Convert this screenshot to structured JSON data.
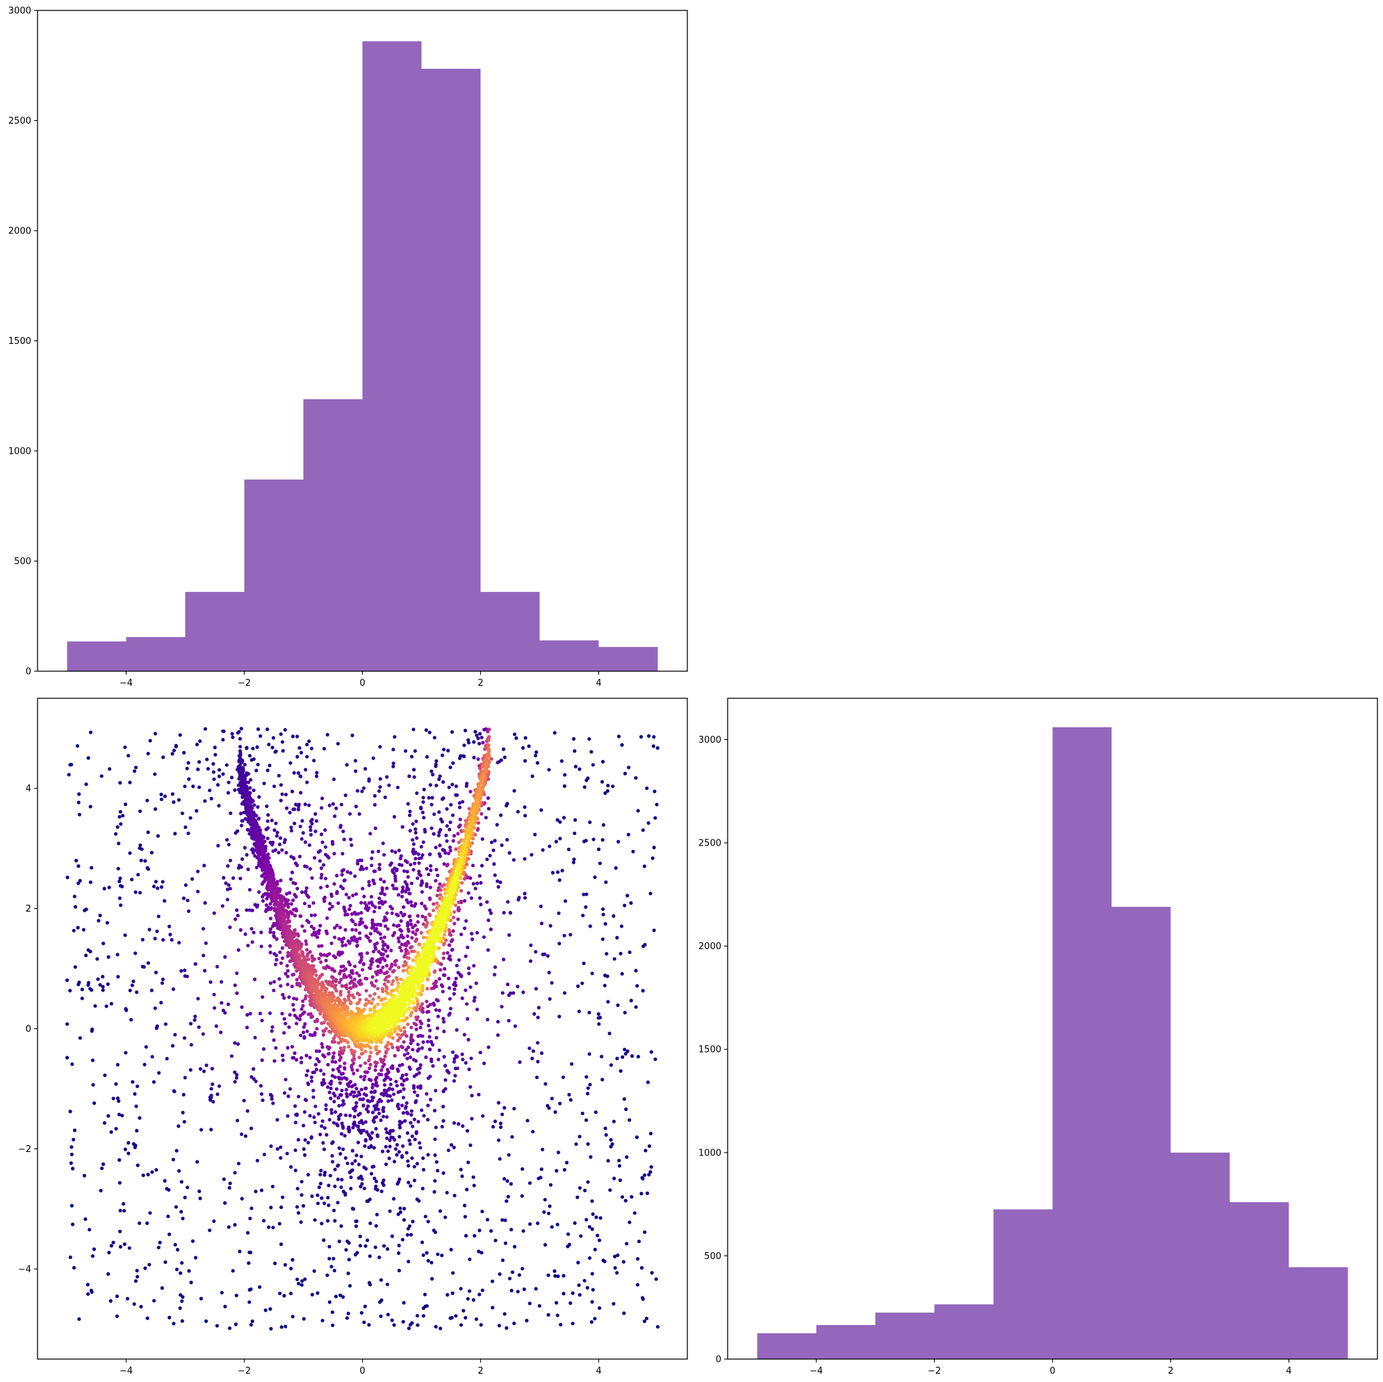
{
  "chart_data": [
    {
      "type": "bar",
      "panel": "top-left",
      "bar_color": "#9467bd",
      "bins": [
        [
          -5,
          -4
        ],
        [
          -4,
          -3
        ],
        [
          -3,
          -2
        ],
        [
          -2,
          -1
        ],
        [
          -1,
          0
        ],
        [
          0,
          1
        ],
        [
          1,
          2
        ],
        [
          2,
          3
        ],
        [
          3,
          4
        ],
        [
          4,
          5
        ]
      ],
      "values": [
        135,
        155,
        360,
        870,
        1235,
        2860,
        2735,
        360,
        140,
        110
      ],
      "xlim": [
        -5.5,
        5.5
      ],
      "ylim": [
        0,
        3000
      ],
      "xticks": [
        -4,
        -2,
        0,
        2,
        4
      ],
      "yticks": [
        0,
        500,
        1000,
        1500,
        2000,
        2500,
        3000
      ],
      "title": "",
      "xlabel": "",
      "ylabel": ""
    },
    {
      "type": "scatter",
      "panel": "bottom-left",
      "colormap": "plasma",
      "point_count": 10000,
      "description_of_shape": "dense parabolic band y≈x² between x≈-2 and 2 over uniform background on [-5,5]×[-5,5]",
      "xlim": [
        -5.5,
        5.5
      ],
      "ylim": [
        -5.5,
        5.5
      ],
      "xticks": [
        -4,
        -2,
        0,
        2,
        4
      ],
      "yticks": [
        -4,
        -2,
        0,
        2,
        4
      ],
      "title": "",
      "xlabel": "",
      "ylabel": ""
    },
    {
      "type": "bar",
      "panel": "bottom-right",
      "bar_color": "#9467bd",
      "bins": [
        [
          -5,
          -4
        ],
        [
          -4,
          -3
        ],
        [
          -3,
          -2
        ],
        [
          -2,
          -1
        ],
        [
          -1,
          0
        ],
        [
          0,
          1
        ],
        [
          1,
          2
        ],
        [
          2,
          3
        ],
        [
          3,
          4
        ],
        [
          4,
          5
        ]
      ],
      "values": [
        125,
        165,
        225,
        265,
        725,
        3060,
        2190,
        1000,
        760,
        445
      ],
      "xlim": [
        -5.5,
        5.5
      ],
      "ylim": [
        0,
        3200
      ],
      "xticks": [
        -4,
        -2,
        0,
        2,
        4
      ],
      "yticks": [
        0,
        500,
        1000,
        1500,
        2000,
        2500,
        3000
      ],
      "title": "",
      "xlabel": "",
      "ylabel": ""
    }
  ]
}
